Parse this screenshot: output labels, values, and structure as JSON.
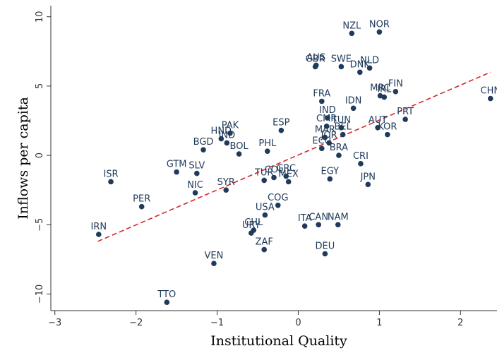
{
  "chart_data": {
    "type": "scatter",
    "xlabel": "Institutional Quality",
    "ylabel": "Inflows per capita",
    "xlim": [
      -3.05,
      2.45
    ],
    "ylim": [
      -11.2,
      10.8
    ],
    "xticks": [
      -3,
      -2,
      -1,
      0,
      1,
      2
    ],
    "yticks": [
      -10,
      -5,
      0,
      5,
      10
    ],
    "grid": false,
    "point_color": "#1f3a5a",
    "fit_line": {
      "color": "#d62728",
      "style": "dashed",
      "x": [
        -2.47,
        2.37
      ],
      "y": [
        -6.2,
        6.0
      ]
    },
    "points": [
      {
        "label": "NZL",
        "x": 0.66,
        "y": 8.8
      },
      {
        "label": "NOR",
        "x": 1.0,
        "y": 8.9
      },
      {
        "label": "GBR",
        "x": 0.21,
        "y": 6.4
      },
      {
        "label": "AUS",
        "x": 0.22,
        "y": 6.5
      },
      {
        "label": "SWE",
        "x": 0.53,
        "y": 6.4
      },
      {
        "label": "NLD",
        "x": 0.88,
        "y": 6.3
      },
      {
        "label": "DNK",
        "x": 0.76,
        "y": 6.0
      },
      {
        "label": "FIN",
        "x": 1.2,
        "y": 4.6
      },
      {
        "label": "MRC",
        "x": 1.01,
        "y": 4.3
      },
      {
        "label": "IRL",
        "x": 1.06,
        "y": 4.2
      },
      {
        "label": "FRA",
        "x": 0.29,
        "y": 3.9
      },
      {
        "label": "IDN",
        "x": 0.68,
        "y": 3.4
      },
      {
        "label": "IND",
        "x": 0.36,
        "y": 2.7
      },
      {
        "label": "CHN",
        "x": 2.37,
        "y": 4.1
      },
      {
        "label": "PRT",
        "x": 1.32,
        "y": 2.6
      },
      {
        "label": "AUT",
        "x": 0.98,
        "y": 2.0
      },
      {
        "label": "KOR",
        "x": 1.1,
        "y": 1.5
      },
      {
        "label": "CMR",
        "x": 0.35,
        "y": 2.1
      },
      {
        "label": "TUN",
        "x": 0.53,
        "y": 2.0
      },
      {
        "label": "BEL",
        "x": 0.55,
        "y": 1.5
      },
      {
        "label": "MAR",
        "x": 0.33,
        "y": 1.3
      },
      {
        "label": "JOR",
        "x": 0.38,
        "y": 0.9
      },
      {
        "label": "ECU",
        "x": 0.29,
        "y": 0.5
      },
      {
        "label": "BRA",
        "x": 0.5,
        "y": 0.0
      },
      {
        "label": "CRI",
        "x": 0.77,
        "y": -0.6
      },
      {
        "label": "JPN",
        "x": 0.86,
        "y": -2.1
      },
      {
        "label": "ESP",
        "x": -0.21,
        "y": 1.8
      },
      {
        "label": "PAK",
        "x": -0.84,
        "y": 1.6
      },
      {
        "label": "HND",
        "x": -0.95,
        "y": 1.2
      },
      {
        "label": "IND",
        "x": -0.88,
        "y": 0.9
      },
      {
        "label": "BGD",
        "x": -1.17,
        "y": 0.4
      },
      {
        "label": "BOL",
        "x": -0.73,
        "y": 0.1
      },
      {
        "label": "PHL",
        "x": -0.38,
        "y": 0.3
      },
      {
        "label": "GTM",
        "x": -1.5,
        "y": -1.2
      },
      {
        "label": "SLV",
        "x": -1.25,
        "y": -1.3
      },
      {
        "label": "NIC",
        "x": -1.27,
        "y": -2.7
      },
      {
        "label": "ISR",
        "x": -2.31,
        "y": -1.9
      },
      {
        "label": "PER",
        "x": -1.93,
        "y": -3.7
      },
      {
        "label": "IRN",
        "x": -2.46,
        "y": -5.7
      },
      {
        "label": "SYR",
        "x": -0.89,
        "y": -2.5
      },
      {
        "label": "TUR",
        "x": -0.42,
        "y": -1.8
      },
      {
        "label": "COL",
        "x": -0.3,
        "y": -1.6
      },
      {
        "label": "GRC",
        "x": -0.15,
        "y": -1.5
      },
      {
        "label": "MEX",
        "x": -0.12,
        "y": -1.9
      },
      {
        "label": "EGY",
        "x": 0.39,
        "y": -1.7
      },
      {
        "label": "COG",
        "x": -0.25,
        "y": -3.6
      },
      {
        "label": "USA",
        "x": -0.41,
        "y": -4.3
      },
      {
        "label": "CHL",
        "x": -0.55,
        "y": -5.4
      },
      {
        "label": "URY",
        "x": -0.58,
        "y": -5.6
      },
      {
        "label": "ZAF",
        "x": -0.42,
        "y": -6.8
      },
      {
        "label": "ITA",
        "x": 0.08,
        "y": -5.1
      },
      {
        "label": "CAN",
        "x": 0.25,
        "y": -5.0
      },
      {
        "label": "NAM",
        "x": 0.49,
        "y": -5.0
      },
      {
        "label": "DEU",
        "x": 0.33,
        "y": -7.1
      },
      {
        "label": "VEN",
        "x": -1.04,
        "y": -7.8
      },
      {
        "label": "TTO",
        "x": -1.62,
        "y": -10.6
      }
    ]
  }
}
